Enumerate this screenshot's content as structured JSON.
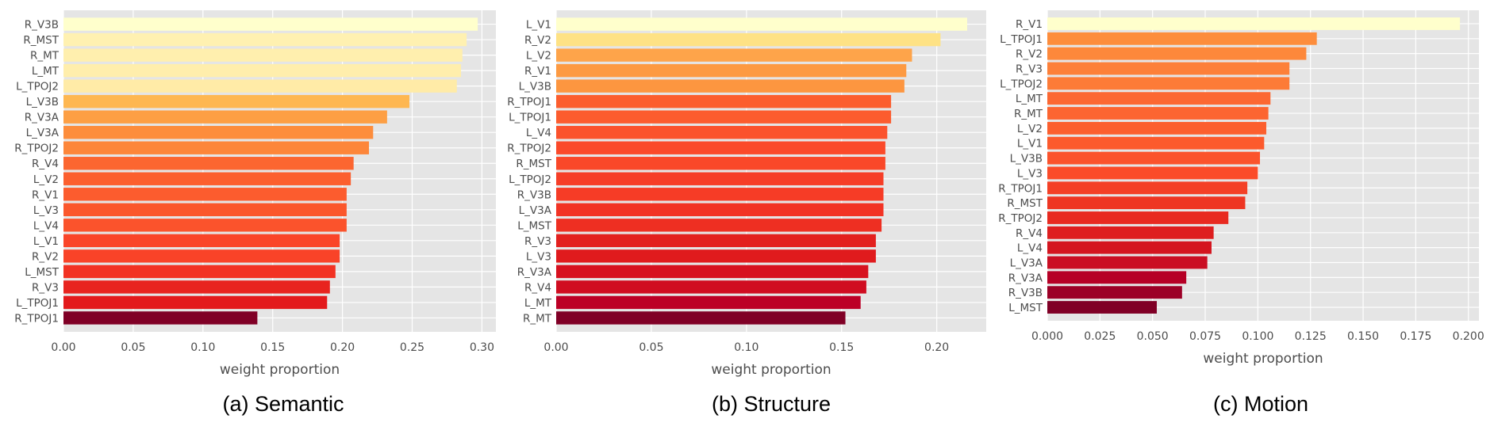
{
  "chart_data": [
    {
      "type": "bar",
      "orientation": "horizontal",
      "caption": "(a) Semantic",
      "xlabel": "weight proportion",
      "ylabel": "",
      "xlim": [
        0,
        0.31
      ],
      "xticks": [
        "0.00",
        "0.05",
        "0.10",
        "0.15",
        "0.20",
        "0.25",
        "0.30"
      ],
      "grid": true,
      "colormap": "YlOrRd",
      "categories": [
        "R_V3B",
        "R_MST",
        "R_MT",
        "L_MT",
        "L_TPOJ2",
        "L_V3B",
        "R_V3A",
        "L_V3A",
        "R_TPOJ2",
        "R_V4",
        "L_V2",
        "R_V1",
        "L_V3",
        "L_V4",
        "L_V1",
        "R_V2",
        "L_MST",
        "R_V3",
        "L_TPOJ1",
        "R_TPOJ1"
      ],
      "values": [
        0.297,
        0.289,
        0.286,
        0.285,
        0.282,
        0.248,
        0.232,
        0.222,
        0.219,
        0.208,
        0.206,
        0.203,
        0.203,
        0.203,
        0.198,
        0.198,
        0.195,
        0.191,
        0.189,
        0.139
      ],
      "colors": [
        "#ffffcc",
        "#fff1b1",
        "#ffefae",
        "#ffeeac",
        "#ffeba7",
        "#feb751",
        "#fd9f44",
        "#fd8d3c",
        "#fd863a",
        "#fc6630",
        "#fc5f2e",
        "#fc5c2e",
        "#fb572c",
        "#fb532c",
        "#fa4529",
        "#f94328",
        "#f23223",
        "#e8241f",
        "#e31a1c",
        "#800026"
      ]
    },
    {
      "type": "bar",
      "orientation": "horizontal",
      "caption": "(b) Structure",
      "xlabel": "weight proportion",
      "ylabel": "",
      "xlim": [
        0,
        0.226
      ],
      "xticks": [
        "0.00",
        "0.05",
        "0.10",
        "0.15",
        "0.20"
      ],
      "grid": true,
      "colormap": "YlOrRd",
      "categories": [
        "L_V1",
        "R_V2",
        "L_V2",
        "R_V1",
        "L_V3B",
        "R_TPOJ1",
        "L_TPOJ1",
        "L_V4",
        "R_TPOJ2",
        "R_MST",
        "L_TPOJ2",
        "R_V3B",
        "L_V3A",
        "L_MST",
        "R_V3",
        "L_V3",
        "R_V3A",
        "R_V4",
        "L_MT",
        "R_MT"
      ],
      "values": [
        0.216,
        0.202,
        0.187,
        0.184,
        0.183,
        0.176,
        0.176,
        0.174,
        0.173,
        0.173,
        0.172,
        0.172,
        0.172,
        0.171,
        0.168,
        0.168,
        0.164,
        0.163,
        0.16,
        0.152
      ],
      "colors": [
        "#ffffcc",
        "#fee285",
        "#fea44a",
        "#fd9a42",
        "#fd9640",
        "#fc5e2e",
        "#fc5c2e",
        "#fb522c",
        "#fb4a2a",
        "#fa4829",
        "#f63e27",
        "#f63c26",
        "#f23324",
        "#ee2f22",
        "#e3201e",
        "#e01b1d",
        "#d7111f",
        "#d00d21",
        "#bc0026",
        "#800026"
      ]
    },
    {
      "type": "bar",
      "orientation": "horizontal",
      "caption": "(c) Motion",
      "xlabel": "weight proportion",
      "ylabel": "",
      "xlim": [
        0,
        0.205
      ],
      "xticks": [
        "0.000",
        "0.025",
        "0.050",
        "0.075",
        "0.100",
        "0.125",
        "0.150",
        "0.175",
        "0.200"
      ],
      "grid": true,
      "colormap": "YlOrRd",
      "categories": [
        "R_V1",
        "L_TPOJ1",
        "R_V2",
        "R_V3",
        "L_TPOJ2",
        "L_MT",
        "R_MT",
        "L_V2",
        "L_V1",
        "L_V3B",
        "L_V3",
        "R_TPOJ1",
        "R_MST",
        "R_TPOJ2",
        "R_V4",
        "L_V4",
        "L_V3A",
        "R_V3A",
        "R_V3B",
        "L_MST"
      ],
      "values": [
        0.196,
        0.128,
        0.123,
        0.115,
        0.115,
        0.106,
        0.105,
        0.104,
        0.103,
        0.101,
        0.1,
        0.095,
        0.094,
        0.086,
        0.079,
        0.078,
        0.076,
        0.066,
        0.064,
        0.052
      ],
      "colors": [
        "#ffffcc",
        "#fd8d3c",
        "#fd883b",
        "#fd8039",
        "#fd7b37",
        "#fc6832",
        "#fc6531",
        "#fc5f2e",
        "#fc5a2d",
        "#fb532c",
        "#fb4b29",
        "#f44026",
        "#ee3623",
        "#e82a20",
        "#de1e1f",
        "#d4151f",
        "#ca0e23",
        "#b60026",
        "#9c0027",
        "#800026"
      ]
    }
  ]
}
